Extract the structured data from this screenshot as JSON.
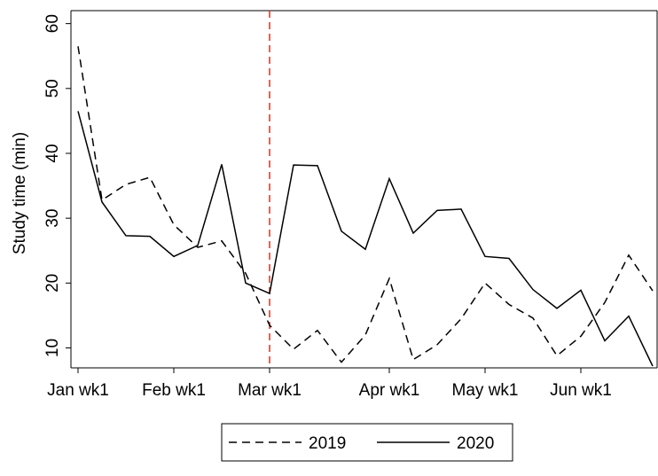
{
  "chart_data": {
    "type": "line",
    "y_label": "Study time (min)",
    "categories": [
      "Jan wk1",
      null,
      null,
      null,
      "Feb wk1",
      null,
      null,
      null,
      "Mar wk1",
      null,
      null,
      null,
      null,
      "Apr wk1",
      null,
      null,
      null,
      "May wk1",
      null,
      null,
      null,
      "Jun wk1",
      null,
      null,
      null
    ],
    "series": [
      {
        "name": "2019",
        "color": "#000000",
        "dash": true,
        "values": [
          56.5,
          32.8,
          35.2,
          36.3,
          29,
          25.5,
          26.5,
          21.5,
          13.5,
          9.8,
          12.7,
          7.8,
          12,
          20.7,
          8.2,
          10.5,
          14.5,
          20,
          16.7,
          14.6,
          8.8,
          11.8,
          17,
          24.3,
          18.8
        ]
      },
      {
        "name": "2020",
        "color": "#000000",
        "dash": false,
        "values": [
          46.5,
          32.5,
          27.3,
          27.2,
          24.1,
          25.8,
          38.3,
          20,
          18.4,
          38.2,
          38.1,
          28,
          25.2,
          36.1,
          27.7,
          31.2,
          31.4,
          24.1,
          23.8,
          19,
          16.1,
          18.9,
          11.1,
          14.9,
          7.2
        ]
      }
    ],
    "reference_line": {
      "category": 8,
      "color": "#e0301e"
    },
    "ylim": [
      7.2,
      62
    ],
    "yticks": [
      10,
      20,
      30,
      40,
      50,
      60
    ]
  }
}
